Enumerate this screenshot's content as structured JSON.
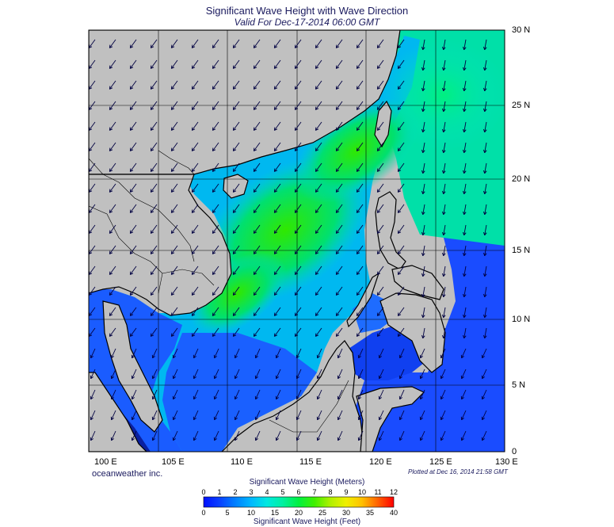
{
  "header": {
    "title": "Significant Wave Height with Wave Direction",
    "valid": "Valid For Dec-17-2014 06:00 GMT"
  },
  "axes": {
    "lon_labels": [
      "100 E",
      "105 E",
      "110 E",
      "115 E",
      "120 E",
      "125 E",
      "130 E"
    ],
    "lat_labels": [
      "30 N",
      "25 N",
      "20 N",
      "15 N",
      "10 N",
      "5 N",
      "0"
    ]
  },
  "footer": {
    "brand": "oceanweather inc.",
    "plotted": "Plotted at Dec 16, 2014 21:58 GMT"
  },
  "colorbar": {
    "title_meters": "Significant Wave Height (Meters)",
    "title_feet": "Significant Wave Height (Feet)",
    "meters_ticks": [
      "0",
      "1",
      "2",
      "3",
      "4",
      "5",
      "6",
      "7",
      "8",
      "9",
      "10",
      "11",
      "12"
    ],
    "feet_ticks": [
      "0",
      "5",
      "10",
      "15",
      "20",
      "25",
      "30",
      "35",
      "40"
    ],
    "colors": [
      "#0010ff",
      "#0a40ff",
      "#0080ff",
      "#00b8ff",
      "#00e8e0",
      "#00f0a0",
      "#00f040",
      "#40f000",
      "#b0f000",
      "#f0f000",
      "#ffc000",
      "#ff6000",
      "#ff0000"
    ]
  },
  "colors": {
    "land": "#c0c0c0",
    "grid": "#000000",
    "arrow": "#000040"
  }
}
